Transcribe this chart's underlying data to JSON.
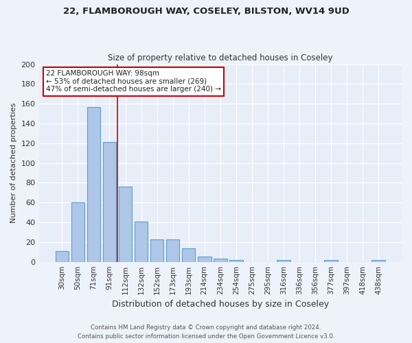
{
  "title1": "22, FLAMBOROUGH WAY, COSELEY, BILSTON, WV14 9UD",
  "title2": "Size of property relative to detached houses in Coseley",
  "xlabel": "Distribution of detached houses by size in Coseley",
  "ylabel": "Number of detached properties",
  "categories": [
    "30sqm",
    "50sqm",
    "71sqm",
    "91sqm",
    "112sqm",
    "132sqm",
    "152sqm",
    "173sqm",
    "193sqm",
    "214sqm",
    "234sqm",
    "254sqm",
    "275sqm",
    "295sqm",
    "316sqm",
    "336sqm",
    "356sqm",
    "377sqm",
    "397sqm",
    "418sqm",
    "438sqm"
  ],
  "values": [
    11,
    60,
    157,
    121,
    76,
    41,
    23,
    23,
    14,
    5,
    3,
    2,
    0,
    0,
    2,
    0,
    0,
    2,
    0,
    0,
    2
  ],
  "bar_color": "#aec6e8",
  "bar_edge_color": "#5a9fd4",
  "bg_color": "#e8eef8",
  "fig_bg_color": "#eef2fa",
  "grid_color": "#ffffff",
  "annotation_text": "22 FLAMBOROUGH WAY: 98sqm\n← 53% of detached houses are smaller (269)\n47% of semi-detached houses are larger (240) →",
  "vline_position": 3.5,
  "vline_color": "#cc0000",
  "annotation_box_color": "#ffffff",
  "annotation_box_edgecolor": "#cc0000",
  "footer1": "Contains HM Land Registry data © Crown copyright and database right 2024.",
  "footer2": "Contains public sector information licensed under the Open Government Licence v3.0.",
  "ylim": [
    0,
    200
  ],
  "yticks": [
    0,
    20,
    40,
    60,
    80,
    100,
    120,
    140,
    160,
    180,
    200
  ]
}
